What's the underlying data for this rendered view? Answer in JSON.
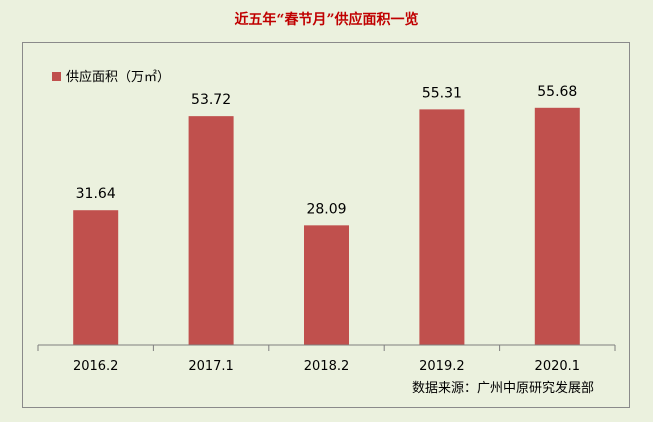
{
  "title": "近五年“春节月”供应面积一览",
  "source": "数据来源：广州中原研究发展部",
  "chart_data": {
    "type": "bar",
    "categories": [
      "2016.2",
      "2017.1",
      "2018.2",
      "2019.2",
      "2020.1"
    ],
    "series": [
      {
        "name": "供应面积（万㎡）",
        "values": [
          31.64,
          53.72,
          28.09,
          55.31,
          55.68
        ]
      }
    ],
    "value_labels": [
      "31.64",
      "53.72",
      "28.09",
      "55.31",
      "55.68"
    ],
    "ylim": [
      0,
      60
    ],
    "grid": false,
    "legend_position": "top-left",
    "colors": {
      "bar": "#c0504d",
      "background": "#ebf1de",
      "title": "#c00000"
    }
  }
}
